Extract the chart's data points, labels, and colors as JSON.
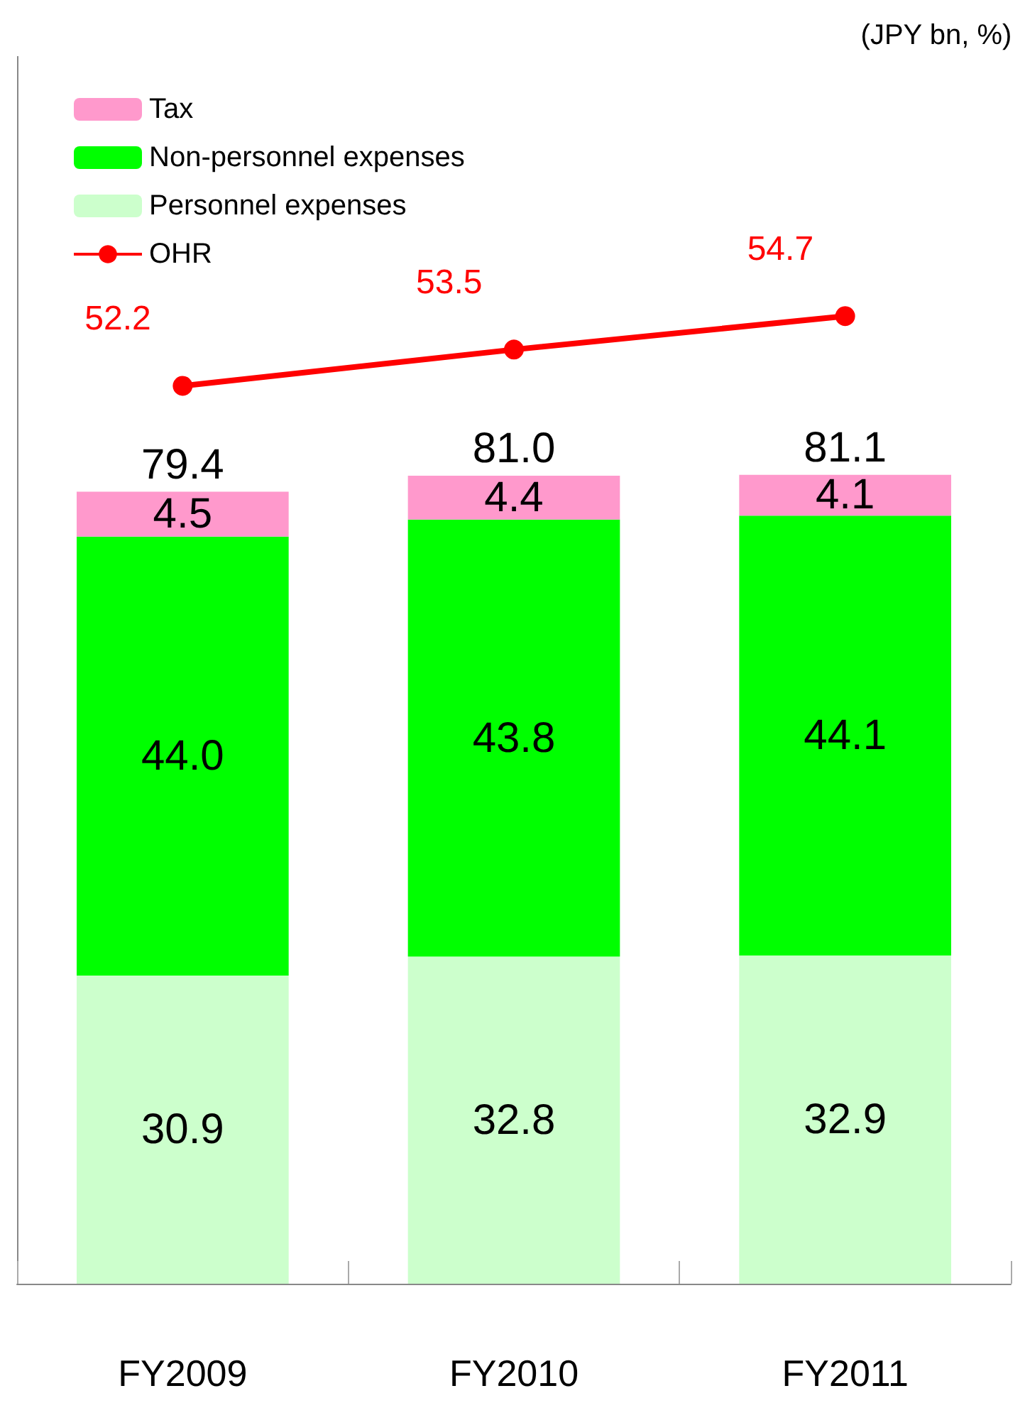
{
  "chart_data": {
    "type": "bar",
    "stacked": true,
    "categories": [
      "FY2009",
      "FY2010",
      "FY2011"
    ],
    "series": [
      {
        "name": "Personnel expenses",
        "color": "#ccffcc",
        "values": [
          30.9,
          32.8,
          32.9
        ],
        "value_labels": [
          "30.9",
          "32.8",
          "32.9"
        ]
      },
      {
        "name": "Non-personnel expenses",
        "color": "#00ff00",
        "values": [
          44.0,
          43.8,
          44.1
        ],
        "value_labels": [
          "44.0",
          "43.8",
          "44.1"
        ]
      },
      {
        "name": "Tax",
        "color": "#ff99cc",
        "values": [
          4.5,
          4.4,
          4.1
        ],
        "value_labels": [
          "4.5",
          "4.4",
          "4.1"
        ]
      },
      {
        "name": "OHR",
        "type": "line",
        "axis": "y2",
        "color": "#ff0000",
        "values": [
          52.2,
          53.5,
          54.7
        ],
        "value_labels": [
          "52.2",
          "53.5",
          "54.7"
        ],
        "marker": "circle"
      }
    ],
    "totals": [
      "79.4",
      "81.0",
      "81.1"
    ],
    "ylim": [
      0,
      123
    ],
    "y2lim": [
      20,
      64
    ],
    "legend": "top left",
    "tick_labels": "x",
    "annotations": [
      "(JPY bn, %)"
    ]
  }
}
